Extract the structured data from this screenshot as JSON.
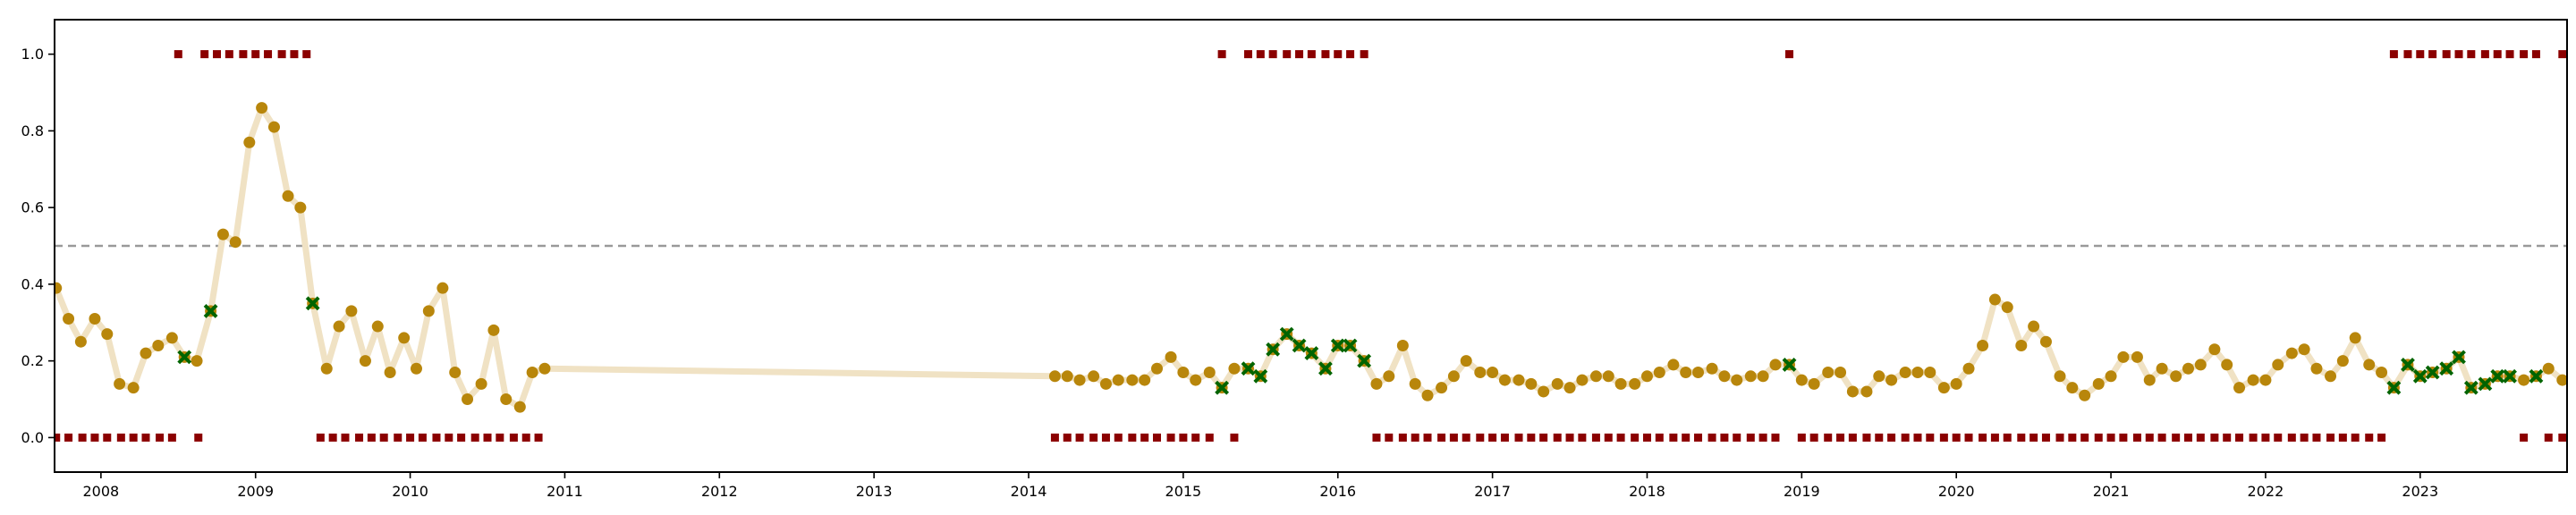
{
  "chart_data": {
    "type": "scatter",
    "title": "",
    "xlabel": "",
    "ylabel": "",
    "xlim": [
      2007.7,
      2023.95
    ],
    "ylim": [
      -0.09,
      1.09
    ],
    "x_ticks": [
      2008,
      2009,
      2010,
      2011,
      2012,
      2013,
      2014,
      2015,
      2016,
      2017,
      2018,
      2019,
      2020,
      2021,
      2022,
      2023
    ],
    "x_tick_labels": [
      "2008",
      "2009",
      "2010",
      "2011",
      "2012",
      "2013",
      "2014",
      "2015",
      "2016",
      "2017",
      "2018",
      "2019",
      "2020",
      "2021",
      "2022",
      "2023"
    ],
    "y_ticks": [
      0.0,
      0.2,
      0.4,
      0.6,
      0.8,
      1.0
    ],
    "y_tick_labels": [
      "0.0",
      "0.2",
      "0.4",
      "0.6",
      "0.8",
      "1.0"
    ],
    "threshold": 0.5,
    "grid": false,
    "legend": "none",
    "colors": {
      "line": "#f0e2c4",
      "dots": "#b8860b",
      "crosses": "#006400",
      "squares": "#8b0000",
      "threshold": "#999999"
    },
    "line_series": [
      [
        2007.71,
        0.39
      ],
      [
        2007.79,
        0.31
      ],
      [
        2007.87,
        0.25
      ],
      [
        2007.96,
        0.31
      ],
      [
        2008.04,
        0.27
      ],
      [
        2008.12,
        0.14
      ],
      [
        2008.21,
        0.13
      ],
      [
        2008.29,
        0.22
      ],
      [
        2008.37,
        0.24
      ],
      [
        2008.46,
        0.26
      ],
      [
        2008.54,
        0.21
      ],
      [
        2008.62,
        0.2
      ],
      [
        2008.71,
        0.33
      ],
      [
        2008.79,
        0.53
      ],
      [
        2008.87,
        0.51
      ],
      [
        2008.96,
        0.77
      ],
      [
        2009.04,
        0.86
      ],
      [
        2009.12,
        0.81
      ],
      [
        2009.21,
        0.63
      ],
      [
        2009.29,
        0.6
      ],
      [
        2009.37,
        0.35
      ],
      [
        2009.46,
        0.18
      ],
      [
        2009.54,
        0.29
      ],
      [
        2009.62,
        0.33
      ],
      [
        2009.71,
        0.2
      ],
      [
        2009.79,
        0.29
      ],
      [
        2009.87,
        0.17
      ],
      [
        2009.96,
        0.26
      ],
      [
        2010.04,
        0.18
      ],
      [
        2010.12,
        0.33
      ],
      [
        2010.21,
        0.39
      ],
      [
        2010.29,
        0.17
      ],
      [
        2010.37,
        0.1
      ],
      [
        2010.46,
        0.14
      ],
      [
        2010.54,
        0.28
      ],
      [
        2010.62,
        0.1
      ],
      [
        2010.71,
        0.08
      ],
      [
        2010.79,
        0.17
      ],
      [
        2010.87,
        0.18
      ],
      [
        2014.17,
        0.16
      ],
      [
        2014.25,
        0.16
      ],
      [
        2014.33,
        0.15
      ],
      [
        2014.42,
        0.16
      ],
      [
        2014.5,
        0.14
      ],
      [
        2014.58,
        0.15
      ],
      [
        2014.67,
        0.15
      ],
      [
        2014.75,
        0.15
      ],
      [
        2014.83,
        0.18
      ],
      [
        2014.92,
        0.21
      ],
      [
        2015.0,
        0.17
      ],
      [
        2015.08,
        0.15
      ],
      [
        2015.17,
        0.17
      ],
      [
        2015.25,
        0.13
      ],
      [
        2015.33,
        0.18
      ],
      [
        2015.42,
        0.18
      ],
      [
        2015.5,
        0.16
      ],
      [
        2015.58,
        0.23
      ],
      [
        2015.67,
        0.27
      ],
      [
        2015.75,
        0.24
      ],
      [
        2015.83,
        0.22
      ],
      [
        2015.92,
        0.18
      ],
      [
        2016.0,
        0.24
      ],
      [
        2016.08,
        0.24
      ],
      [
        2016.17,
        0.2
      ],
      [
        2016.25,
        0.14
      ],
      [
        2016.33,
        0.16
      ],
      [
        2016.42,
        0.24
      ],
      [
        2016.5,
        0.14
      ],
      [
        2016.58,
        0.11
      ],
      [
        2016.67,
        0.13
      ],
      [
        2016.75,
        0.16
      ],
      [
        2016.83,
        0.2
      ],
      [
        2016.92,
        0.17
      ],
      [
        2017.0,
        0.17
      ],
      [
        2017.08,
        0.15
      ],
      [
        2017.17,
        0.15
      ],
      [
        2017.25,
        0.14
      ],
      [
        2017.33,
        0.12
      ],
      [
        2017.42,
        0.14
      ],
      [
        2017.5,
        0.13
      ],
      [
        2017.58,
        0.15
      ],
      [
        2017.67,
        0.16
      ],
      [
        2017.75,
        0.16
      ],
      [
        2017.83,
        0.14
      ],
      [
        2017.92,
        0.14
      ],
      [
        2018.0,
        0.16
      ],
      [
        2018.08,
        0.17
      ],
      [
        2018.17,
        0.19
      ],
      [
        2018.25,
        0.17
      ],
      [
        2018.33,
        0.17
      ],
      [
        2018.42,
        0.18
      ],
      [
        2018.5,
        0.16
      ],
      [
        2018.58,
        0.15
      ],
      [
        2018.67,
        0.16
      ],
      [
        2018.75,
        0.16
      ],
      [
        2018.83,
        0.19
      ],
      [
        2018.92,
        0.19
      ],
      [
        2019.0,
        0.15
      ],
      [
        2019.08,
        0.14
      ],
      [
        2019.17,
        0.17
      ],
      [
        2019.25,
        0.17
      ],
      [
        2019.33,
        0.12
      ],
      [
        2019.42,
        0.12
      ],
      [
        2019.5,
        0.16
      ],
      [
        2019.58,
        0.15
      ],
      [
        2019.67,
        0.17
      ],
      [
        2019.75,
        0.17
      ],
      [
        2019.83,
        0.17
      ],
      [
        2019.92,
        0.13
      ],
      [
        2020.0,
        0.14
      ],
      [
        2020.08,
        0.18
      ],
      [
        2020.17,
        0.24
      ],
      [
        2020.25,
        0.36
      ],
      [
        2020.33,
        0.34
      ],
      [
        2020.42,
        0.24
      ],
      [
        2020.5,
        0.29
      ],
      [
        2020.58,
        0.25
      ],
      [
        2020.67,
        0.16
      ],
      [
        2020.75,
        0.13
      ],
      [
        2020.83,
        0.11
      ],
      [
        2020.92,
        0.14
      ],
      [
        2021.0,
        0.16
      ],
      [
        2021.08,
        0.21
      ],
      [
        2021.17,
        0.21
      ],
      [
        2021.25,
        0.15
      ],
      [
        2021.33,
        0.18
      ],
      [
        2021.42,
        0.16
      ],
      [
        2021.5,
        0.18
      ],
      [
        2021.58,
        0.19
      ],
      [
        2021.67,
        0.23
      ],
      [
        2021.75,
        0.19
      ],
      [
        2021.83,
        0.13
      ],
      [
        2021.92,
        0.15
      ],
      [
        2022.0,
        0.15
      ],
      [
        2022.08,
        0.19
      ],
      [
        2022.17,
        0.22
      ],
      [
        2022.25,
        0.23
      ],
      [
        2022.33,
        0.18
      ],
      [
        2022.42,
        0.16
      ],
      [
        2022.5,
        0.2
      ],
      [
        2022.58,
        0.26
      ],
      [
        2022.67,
        0.19
      ],
      [
        2022.75,
        0.17
      ],
      [
        2022.83,
        0.13
      ],
      [
        2022.92,
        0.19
      ],
      [
        2023.0,
        0.16
      ],
      [
        2023.08,
        0.17
      ],
      [
        2023.17,
        0.18
      ],
      [
        2023.25,
        0.21
      ],
      [
        2023.33,
        0.13
      ],
      [
        2023.42,
        0.14
      ],
      [
        2023.5,
        0.16
      ],
      [
        2023.58,
        0.16
      ],
      [
        2023.67,
        0.15
      ],
      [
        2023.75,
        0.16
      ],
      [
        2023.83,
        0.18
      ],
      [
        2023.92,
        0.15
      ]
    ],
    "cross_points": [
      [
        2008.54,
        0.21
      ],
      [
        2008.71,
        0.33
      ],
      [
        2009.37,
        0.35
      ],
      [
        2015.25,
        0.13
      ],
      [
        2015.42,
        0.18
      ],
      [
        2015.5,
        0.16
      ],
      [
        2015.58,
        0.23
      ],
      [
        2015.67,
        0.27
      ],
      [
        2015.75,
        0.24
      ],
      [
        2015.83,
        0.22
      ],
      [
        2015.92,
        0.18
      ],
      [
        2016.0,
        0.24
      ],
      [
        2016.08,
        0.24
      ],
      [
        2016.17,
        0.2
      ],
      [
        2018.92,
        0.19
      ],
      [
        2022.83,
        0.13
      ],
      [
        2022.92,
        0.19
      ],
      [
        2023.0,
        0.16
      ],
      [
        2023.08,
        0.17
      ],
      [
        2023.17,
        0.18
      ],
      [
        2023.25,
        0.21
      ],
      [
        2023.33,
        0.13
      ],
      [
        2023.42,
        0.14
      ],
      [
        2023.5,
        0.16
      ],
      [
        2023.58,
        0.16
      ],
      [
        2023.75,
        0.16
      ]
    ],
    "square_points_high": [
      2008.5,
      2008.67,
      2008.75,
      2008.83,
      2008.92,
      2009.0,
      2009.08,
      2009.17,
      2009.25,
      2009.33,
      2015.25,
      2015.42,
      2015.5,
      2015.58,
      2015.67,
      2015.75,
      2015.83,
      2015.92,
      2016.0,
      2016.08,
      2016.17,
      2018.92,
      2022.83,
      2022.92,
      2023.0,
      2023.08,
      2023.17,
      2023.25,
      2023.33,
      2023.42,
      2023.5,
      2023.58,
      2023.67,
      2023.75,
      2023.92
    ],
    "square_points_low": [
      2007.71,
      2007.79,
      2007.88,
      2007.96,
      2008.04,
      2008.13,
      2008.21,
      2008.29,
      2008.38,
      2008.46,
      2008.63,
      2009.42,
      2009.5,
      2009.58,
      2009.67,
      2009.75,
      2009.83,
      2009.92,
      2010.0,
      2010.08,
      2010.17,
      2010.25,
      2010.33,
      2010.42,
      2010.5,
      2010.58,
      2010.67,
      2010.75,
      2010.83,
      2014.17,
      2014.25,
      2014.33,
      2014.42,
      2014.5,
      2014.58,
      2014.67,
      2014.75,
      2014.83,
      2014.92,
      2015.0,
      2015.08,
      2015.17,
      2015.33,
      2016.25,
      2016.33,
      2016.42,
      2016.5,
      2016.58,
      2016.67,
      2016.75,
      2016.83,
      2016.92,
      2017.0,
      2017.08,
      2017.17,
      2017.25,
      2017.33,
      2017.42,
      2017.5,
      2017.58,
      2017.67,
      2017.75,
      2017.83,
      2017.92,
      2018.0,
      2018.08,
      2018.17,
      2018.25,
      2018.33,
      2018.42,
      2018.5,
      2018.58,
      2018.67,
      2018.75,
      2018.83,
      2019.0,
      2019.08,
      2019.17,
      2019.25,
      2019.33,
      2019.42,
      2019.5,
      2019.58,
      2019.67,
      2019.75,
      2019.83,
      2019.92,
      2020.0,
      2020.08,
      2020.17,
      2020.25,
      2020.33,
      2020.42,
      2020.5,
      2020.58,
      2020.67,
      2020.75,
      2020.83,
      2020.92,
      2021.0,
      2021.08,
      2021.17,
      2021.25,
      2021.33,
      2021.42,
      2021.5,
      2021.58,
      2021.67,
      2021.75,
      2021.83,
      2021.92,
      2022.0,
      2022.08,
      2022.17,
      2022.25,
      2022.33,
      2022.42,
      2022.5,
      2022.58,
      2022.67,
      2022.75,
      2023.67,
      2023.83,
      2023.92
    ]
  }
}
